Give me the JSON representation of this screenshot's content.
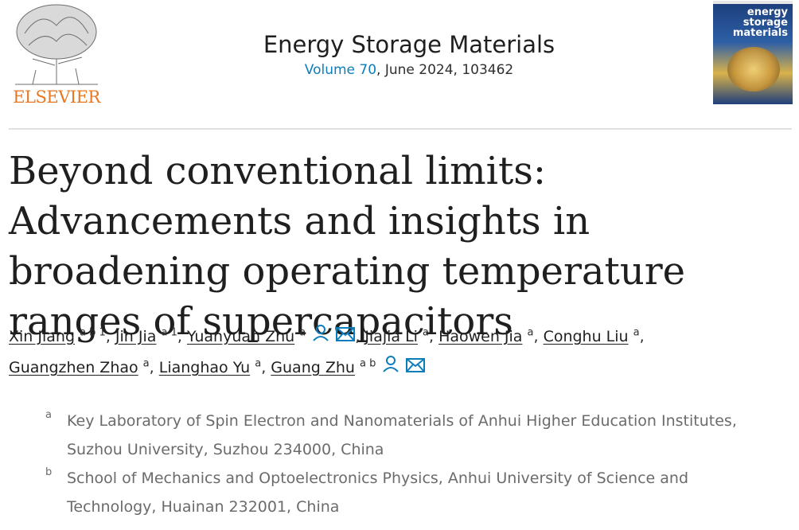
{
  "publisher": {
    "name": "ELSEVIER",
    "logo_icon": "elsevier-tree-logo",
    "brand_color": "#e87722"
  },
  "journal": {
    "title": "Energy Storage Materials",
    "volume_link": "Volume 70",
    "issue_info": ", June 2024, 103462",
    "link_color": "#0c7dbb",
    "cover_text": "energy storage materials"
  },
  "article": {
    "title": "Beyond conventional limits: Advancements and insights in broadening operating temperature ranges of supercapacitors"
  },
  "authors": [
    {
      "name": "Xin Jiang",
      "sup": "a b 1",
      "sep": ", "
    },
    {
      "name": "Jin Jia",
      "sup": "a 1",
      "sep": ", "
    },
    {
      "name": "Yuanyuan Zhu",
      "sup": "a",
      "sep": ", ",
      "icons": [
        "person-icon",
        "mail-icon"
      ]
    },
    {
      "name": "Jiajia Li",
      "sup": "a",
      "sep": ", "
    },
    {
      "name": "Haowen Jia",
      "sup": "a",
      "sep": ", "
    },
    {
      "name": "Conghu Liu",
      "sup": "a",
      "sep": ","
    },
    {
      "name": "Guangzhen Zhao",
      "sup": "a",
      "sep": ", "
    },
    {
      "name": "Lianghao Yu",
      "sup": "a",
      "sep": ", "
    },
    {
      "name": "Guang Zhu",
      "sup": "a b",
      "sep": "",
      "icons": [
        "person-icon",
        "mail-icon"
      ]
    }
  ],
  "affiliations": [
    {
      "label": "a",
      "line1": "Key Laboratory of Spin Electron and Nanomaterials of Anhui Higher Education Institutes,",
      "line2": "Suzhou University, Suzhou 234000, China"
    },
    {
      "label": "b",
      "line1": "School of Mechanics and Optoelectronics Physics, Anhui University of Science and",
      "line2": "Technology, Huainan 232001, China"
    }
  ]
}
